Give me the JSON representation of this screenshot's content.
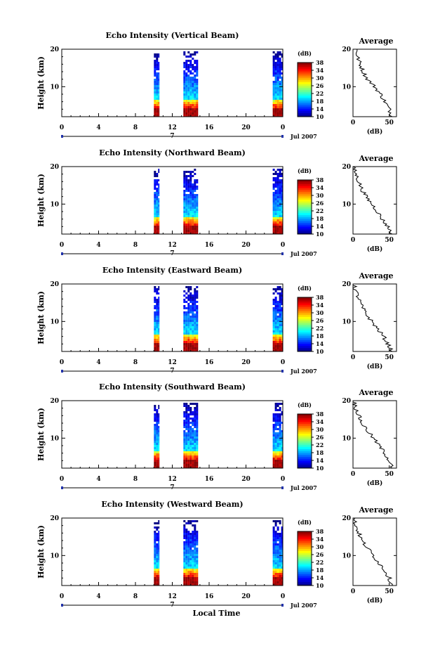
{
  "chart_data": {
    "type": "heatmap",
    "x_axis_label": "Local Time",
    "x_ticks": [
      "0",
      "4",
      "8",
      "12",
      "16",
      "20",
      "0"
    ],
    "x_range": [
      0,
      24
    ],
    "date_marker": "7",
    "date_label": "Jul 2007",
    "y_label": "Height (km)",
    "y_ticks": [
      "20",
      "10"
    ],
    "y_range": [
      2,
      20
    ],
    "colorbar": {
      "label": "(dB)",
      "ticks": [
        "38",
        "34",
        "30",
        "26",
        "22",
        "18",
        "14",
        "10"
      ],
      "range": [
        10,
        38
      ]
    },
    "observation_periods_local_time": [
      [
        10.0,
        10.6
      ],
      [
        13.2,
        14.8
      ],
      [
        22.9,
        24.0
      ]
    ],
    "panels": [
      {
        "title": "Echo Intensity (Vertical Beam)",
        "average_title": "Average",
        "average_x_ticks": [
          "0",
          "50"
        ],
        "average_x_label": "(dB)",
        "average_profile": {
          "height_km": [
            20,
            18,
            16,
            14,
            12,
            10,
            8,
            6,
            4,
            2
          ],
          "intensity_db": [
            5,
            6,
            10,
            14,
            20,
            30,
            38,
            44,
            50,
            54
          ]
        }
      },
      {
        "title": "Echo Intensity (Northward Beam)",
        "average_title": "Average",
        "average_x_ticks": [
          "0",
          "50"
        ],
        "average_x_label": "(dB)",
        "average_profile": {
          "height_km": [
            20,
            18,
            16,
            14,
            12,
            10,
            8,
            6,
            4,
            2
          ],
          "intensity_db": [
            0,
            4,
            8,
            12,
            18,
            26,
            34,
            40,
            48,
            54
          ]
        }
      },
      {
        "title": "Echo Intensity (Eastward Beam)",
        "average_title": "Average",
        "average_x_ticks": [
          "0",
          "50"
        ],
        "average_x_label": "(dB)",
        "average_profile": {
          "height_km": [
            20,
            18,
            16,
            14,
            12,
            10,
            8,
            6,
            4,
            2
          ],
          "intensity_db": [
            1,
            4,
            8,
            12,
            18,
            26,
            34,
            42,
            48,
            54
          ]
        }
      },
      {
        "title": "Echo Intensity (Southward Beam)",
        "average_title": "Average",
        "average_x_ticks": [
          "0",
          "50"
        ],
        "average_x_label": "(dB)",
        "average_profile": {
          "height_km": [
            20,
            18,
            16,
            14,
            12,
            10,
            8,
            6,
            4,
            2
          ],
          "intensity_db": [
            1,
            4,
            8,
            12,
            20,
            28,
            36,
            44,
            50,
            54
          ]
        }
      },
      {
        "title": "Echo Intensity (Westward Beam)",
        "average_title": "Average",
        "average_x_ticks": [
          "0",
          "50"
        ],
        "average_x_label": "(dB)",
        "average_profile": {
          "height_km": [
            20,
            18,
            16,
            14,
            12,
            10,
            8,
            6,
            4,
            2
          ],
          "intensity_db": [
            1,
            4,
            8,
            12,
            20,
            28,
            36,
            44,
            50,
            54
          ]
        }
      }
    ]
  }
}
